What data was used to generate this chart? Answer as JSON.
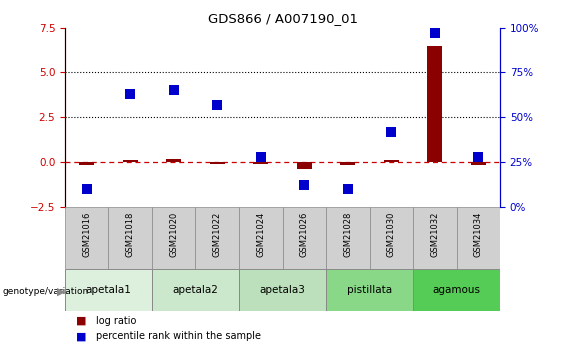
{
  "title": "GDS866 / A007190_01",
  "samples": [
    "GSM21016",
    "GSM21018",
    "GSM21020",
    "GSM21022",
    "GSM21024",
    "GSM21026",
    "GSM21028",
    "GSM21030",
    "GSM21032",
    "GSM21034"
  ],
  "log_ratio": [
    -0.15,
    0.12,
    0.18,
    -0.12,
    -0.12,
    -0.38,
    -0.18,
    0.1,
    6.5,
    -0.15
  ],
  "percentile_rank": [
    10,
    63,
    65,
    57,
    28,
    12,
    10,
    42,
    97,
    28
  ],
  "ylim_left": [
    -2.5,
    7.5
  ],
  "ylim_right": [
    0,
    100
  ],
  "yticks_left": [
    -2.5,
    0,
    2.5,
    5.0,
    7.5
  ],
  "yticks_right": [
    0,
    25,
    50,
    75,
    100
  ],
  "hlines": [
    2.5,
    5.0
  ],
  "genotype_groups": [
    {
      "name": "apetala1",
      "samples": [
        0,
        1
      ],
      "color": "#ddf0dd"
    },
    {
      "name": "apetala2",
      "samples": [
        2,
        3
      ],
      "color": "#cce8cc"
    },
    {
      "name": "apetala3",
      "samples": [
        4,
        5
      ],
      "color": "#bbe0bb"
    },
    {
      "name": "pistillata",
      "samples": [
        6,
        7
      ],
      "color": "#88d888"
    },
    {
      "name": "agamous",
      "samples": [
        8,
        9
      ],
      "color": "#55cc55"
    }
  ],
  "bar_color": "#8b0000",
  "dot_color": "#0000cc",
  "dashed_line_color": "#cc0000",
  "bar_width": 0.35,
  "dot_size": 45,
  "sample_box_color": "#d0d0d0",
  "left_yaxis_color": "#cc0000",
  "right_yaxis_color": "#0000cc"
}
